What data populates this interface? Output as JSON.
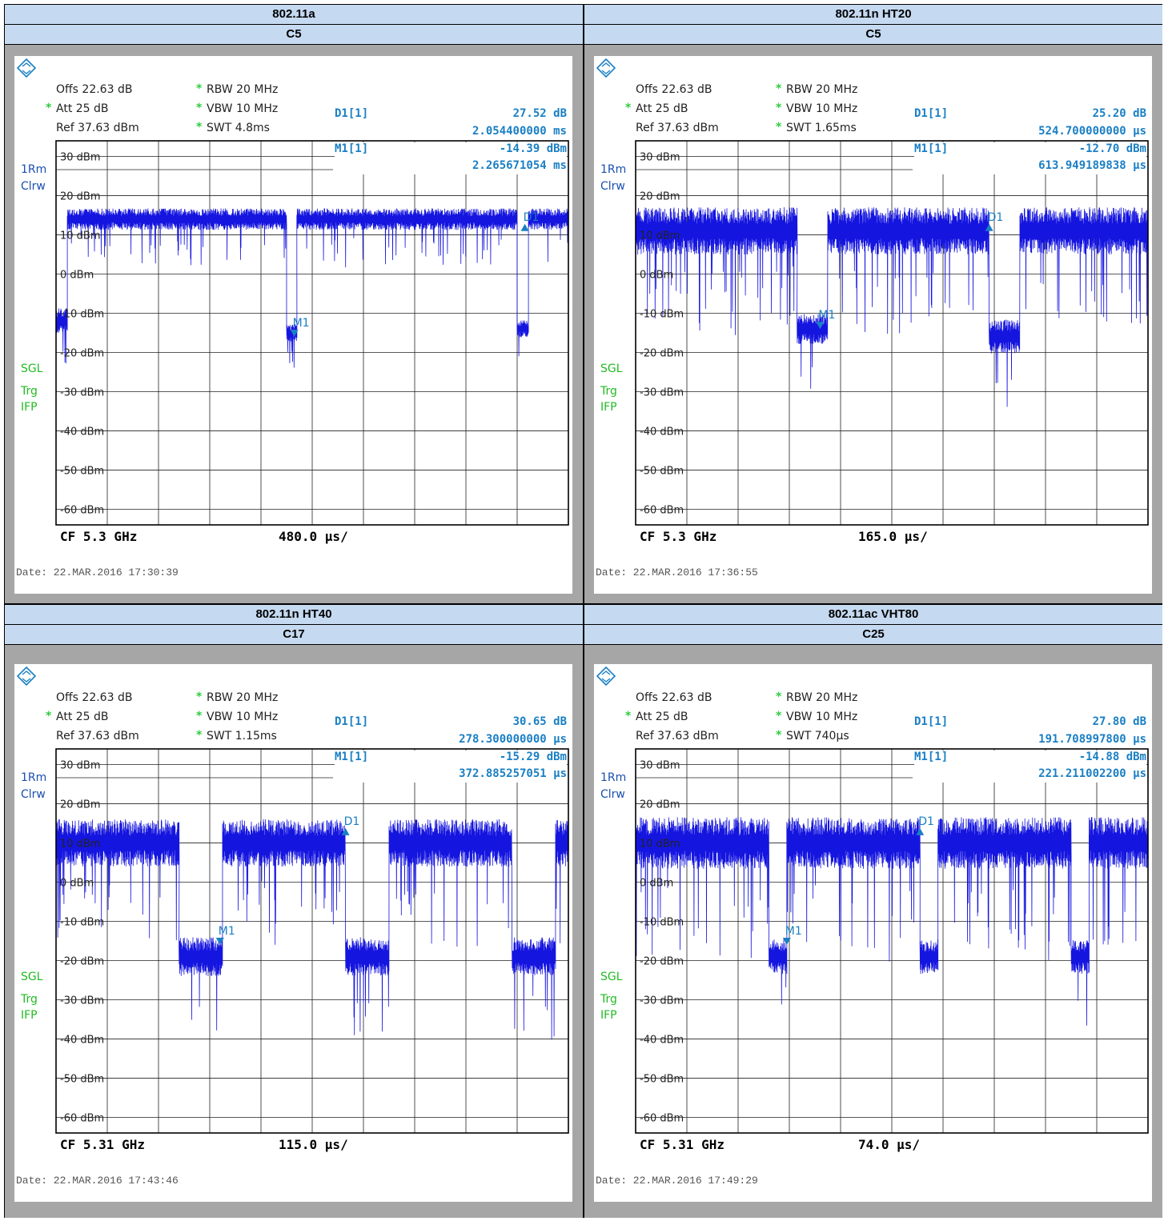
{
  "colors": {
    "trace": "#1515e0",
    "marker": "#1a7fc4",
    "green": "#22bb22",
    "header_bg": "#c5d9f1"
  },
  "panels": [
    {
      "mode": "802.11a",
      "channel": "C5",
      "offs": "Offs 22.63 dB",
      "att": "Att  25 dB",
      "ref": "Ref  37.63 dBm",
      "rbw": "RBW 20 MHz",
      "vbw": "VBW 10 MHz",
      "swt": "SWT 4.8ms",
      "d1_label": "D1[1]",
      "d1_value": "27.52 dB",
      "d1_time": "2.054400000 ms",
      "m1_label": "M1[1]",
      "m1_value": "-14.39 dBm",
      "m1_time": "2.265671054 ms",
      "cf": "CF 5.3 GHz",
      "span": "480.0 µs/",
      "date": "Date: 22.MAR.2016  17:30:39"
    },
    {
      "mode": "802.11n HT20",
      "channel": "C5",
      "offs": "Offs 22.63 dB",
      "att": "Att  25 dB",
      "ref": "Ref  37.63 dBm",
      "rbw": "RBW 20 MHz",
      "vbw": "VBW 10 MHz",
      "swt": "SWT 1.65ms",
      "d1_label": "D1[1]",
      "d1_value": "25.20 dB",
      "d1_time": "524.700000000 µs",
      "m1_label": "M1[1]",
      "m1_value": "-12.70 dBm",
      "m1_time": "613.949189838 µs",
      "cf": "CF 5.3 GHz",
      "span": "165.0 µs/",
      "date": "Date: 22.MAR.2016  17:36:55"
    },
    {
      "mode": "802.11n HT40",
      "channel": "C17",
      "offs": "Offs 22.63 dB",
      "att": "Att  25 dB",
      "ref": "Ref  37.63 dBm",
      "rbw": "RBW 20 MHz",
      "vbw": "VBW 10 MHz",
      "swt": "SWT 1.15ms",
      "d1_label": "D1[1]",
      "d1_value": "30.65 dB",
      "d1_time": "278.300000000 µs",
      "m1_label": "M1[1]",
      "m1_value": "-15.29 dBm",
      "m1_time": "372.885257051 µs",
      "cf": "CF 5.31 GHz",
      "span": "115.0 µs/",
      "date": "Date: 22.MAR.2016  17:43:46"
    },
    {
      "mode": "802.11ac VHT80",
      "channel": "C25",
      "offs": "Offs 22.63 dB",
      "att": "Att  25 dB",
      "ref": "Ref  37.63 dBm",
      "rbw": "RBW 20 MHz",
      "vbw": "VBW 10 MHz",
      "swt": "SWT 740µs",
      "d1_label": "D1[1]",
      "d1_value": "27.80 dB",
      "d1_time": "191.708997800 µs",
      "m1_label": "M1[1]",
      "m1_value": "-14.88 dBm",
      "m1_time": "221.211002200 µs",
      "cf": "CF 5.31 GHz",
      "span": "74.0 µs/",
      "date": "Date: 22.MAR.2016  17:49:29"
    }
  ],
  "side_labels": {
    "trace": "1Rm",
    "clrw": "Clrw",
    "sgl": "SGL",
    "trg": "Trg",
    "ifp": "IFP",
    "star": "*"
  },
  "marker_labels": {
    "d1": "D1",
    "m1": "M1"
  },
  "chart_data": [
    {
      "type": "line",
      "title": "802.11a C5",
      "yticks": [
        "30 dBm",
        "20 dBm",
        "10 dBm",
        "0 dBm",
        "-10 dBm",
        "-20 dBm",
        "-30 dBm",
        "-40 dBm",
        "-50 dBm",
        "-60 dBm"
      ],
      "ylim": [
        -64,
        34
      ],
      "xlim": [
        0,
        10
      ],
      "x_units": "divisions",
      "segments": [
        {
          "x0": 0,
          "x1": 0.22,
          "level": -12,
          "spread": 6
        },
        {
          "x0": 0.22,
          "x1": 4.5,
          "level": 14,
          "spread": 5
        },
        {
          "x0": 4.5,
          "x1": 4.7,
          "level": -15,
          "spread": 4
        },
        {
          "x0": 4.7,
          "x1": 9.0,
          "level": 14,
          "spread": 5
        },
        {
          "x0": 9.0,
          "x1": 9.22,
          "level": -14,
          "spread": 4
        },
        {
          "x0": 9.22,
          "x1": 10,
          "level": 14,
          "spread": 5
        }
      ],
      "markers": [
        {
          "name": "D1",
          "x": 9.15,
          "y": 12,
          "dir": "up"
        },
        {
          "name": "M1",
          "x": 4.65,
          "y": -15,
          "dir": "down"
        }
      ]
    },
    {
      "type": "line",
      "title": "802.11n HT20 C5",
      "yticks": [
        "30 dBm",
        "20 dBm",
        "10 dBm",
        "0 dBm",
        "-10 dBm",
        "-20 dBm",
        "-30 dBm",
        "-40 dBm",
        "-50 dBm",
        "-60 dBm"
      ],
      "ylim": [
        -64,
        34
      ],
      "xlim": [
        0,
        10
      ],
      "x_units": "divisions",
      "segments": [
        {
          "x0": 0,
          "x1": 3.15,
          "level": 11,
          "spread": 11
        },
        {
          "x0": 3.15,
          "x1": 3.75,
          "level": -14,
          "spread": 7
        },
        {
          "x0": 3.75,
          "x1": 6.9,
          "level": 11,
          "spread": 11
        },
        {
          "x0": 6.9,
          "x1": 7.5,
          "level": -16,
          "spread": 8
        },
        {
          "x0": 7.5,
          "x1": 10,
          "level": 11,
          "spread": 11
        }
      ],
      "markers": [
        {
          "name": "D1",
          "x": 6.9,
          "y": 12,
          "dir": "up"
        },
        {
          "name": "M1",
          "x": 3.6,
          "y": -13,
          "dir": "down"
        }
      ]
    },
    {
      "type": "line",
      "title": "802.11n HT40 C17",
      "yticks": [
        "30 dBm",
        "20 dBm",
        "10 dBm",
        "0 dBm",
        "-10 dBm",
        "-20 dBm",
        "-30 dBm",
        "-40 dBm",
        "-50 dBm",
        "-60 dBm"
      ],
      "ylim": [
        -64,
        34
      ],
      "xlim": [
        0,
        10
      ],
      "x_units": "divisions",
      "segments": [
        {
          "x0": 0,
          "x1": 2.4,
          "level": 10,
          "spread": 11
        },
        {
          "x0": 2.4,
          "x1": 3.25,
          "level": -19,
          "spread": 9
        },
        {
          "x0": 3.25,
          "x1": 5.65,
          "level": 10,
          "spread": 11
        },
        {
          "x0": 5.65,
          "x1": 6.5,
          "level": -19,
          "spread": 9
        },
        {
          "x0": 6.5,
          "x1": 8.9,
          "level": 10,
          "spread": 11
        },
        {
          "x0": 8.9,
          "x1": 9.75,
          "level": -19,
          "spread": 9
        },
        {
          "x0": 9.75,
          "x1": 10,
          "level": 10,
          "spread": 11
        }
      ],
      "markers": [
        {
          "name": "D1",
          "x": 5.65,
          "y": 13,
          "dir": "up"
        },
        {
          "name": "M1",
          "x": 3.2,
          "y": -15,
          "dir": "down"
        }
      ]
    },
    {
      "type": "line",
      "title": "802.11ac VHT80 C25",
      "yticks": [
        "30 dBm",
        "20 dBm",
        "10 dBm",
        "0 dBm",
        "-10 dBm",
        "-20 dBm",
        "-30 dBm",
        "-40 dBm",
        "-50 dBm",
        "-60 dBm"
      ],
      "ylim": [
        -64,
        34
      ],
      "xlim": [
        0,
        10
      ],
      "x_units": "divisions",
      "segments": [
        {
          "x0": 0,
          "x1": 2.6,
          "level": 10,
          "spread": 12
        },
        {
          "x0": 2.6,
          "x1": 2.95,
          "level": -19,
          "spread": 8
        },
        {
          "x0": 2.95,
          "x1": 5.55,
          "level": 10,
          "spread": 12
        },
        {
          "x0": 5.55,
          "x1": 5.9,
          "level": -19,
          "spread": 8
        },
        {
          "x0": 5.9,
          "x1": 8.5,
          "level": 10,
          "spread": 12
        },
        {
          "x0": 8.5,
          "x1": 8.85,
          "level": -19,
          "spread": 8
        },
        {
          "x0": 8.85,
          "x1": 10,
          "level": 10,
          "spread": 12
        }
      ],
      "markers": [
        {
          "name": "D1",
          "x": 5.55,
          "y": 13,
          "dir": "up"
        },
        {
          "name": "M1",
          "x": 2.95,
          "y": -15,
          "dir": "down"
        }
      ]
    }
  ]
}
